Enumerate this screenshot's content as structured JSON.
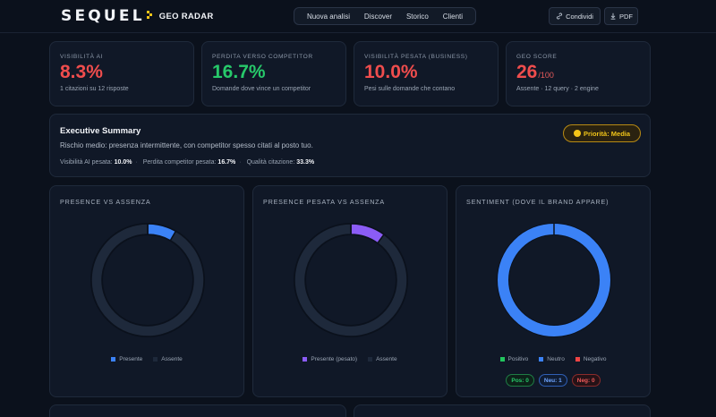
{
  "header": {
    "logo": "SEQUEL",
    "logo_sub": "GEO RADAR",
    "nav": [
      "Nuova analisi",
      "Discover",
      "Storico",
      "Clienti"
    ],
    "share_label": "Condividi",
    "pdf_label": "PDF"
  },
  "kpis": [
    {
      "label": "Visibilità AI",
      "value": "8.3%",
      "sub": "1 citazioni su 12 risposte",
      "color": "#ef4d4d"
    },
    {
      "label": "Perdita verso competitor",
      "value": "16.7%",
      "sub": "Domande dove vince un competitor",
      "color": "#27c96a"
    },
    {
      "label": "Visibilità pesata (business)",
      "value": "10.0%",
      "sub": "Pesi sulle domande che contano",
      "color": "#ef4d4d"
    },
    {
      "label": "GEO Score",
      "value": "26",
      "suffix": "/100",
      "sub": "Assente · 12 query · 2 engine",
      "color": "#ef4d4d"
    }
  ],
  "executive": {
    "title": "Executive Summary",
    "text": "Rischio medio: presenza intermittente, con competitor spesso citati al posto tuo.",
    "m1_label": "Visibilità AI pesata:",
    "m1_value": "10.0%",
    "m2_label": "Perdita competitor pesata:",
    "m2_value": "16.7%",
    "m3_label": "Qualità citazione:",
    "m3_value": "33.3%",
    "priority": "Priorità: Media"
  },
  "donuts": {
    "presence": {
      "title": "Presence vs Assenza",
      "legend": [
        "Presente",
        "Assente"
      ]
    },
    "weighted": {
      "title": "Presence pesata vs Assenza",
      "legend": [
        "Presente (pesato)",
        "Assente"
      ]
    },
    "sentiment": {
      "title": "Sentiment (dove il brand appare)",
      "legend": [
        "Positivo",
        "Neutro",
        "Negativo"
      ],
      "badges": [
        "Pos: 0",
        "Neu: 1",
        "Neg: 0"
      ]
    }
  },
  "chart_data": [
    {
      "type": "pie",
      "title": "Presence vs Assenza",
      "categories": [
        "Presente",
        "Assente"
      ],
      "values": [
        8.3,
        91.7
      ],
      "colors": [
        "#3b82f6",
        "#1e293b"
      ]
    },
    {
      "type": "pie",
      "title": "Presence pesata vs Assenza",
      "categories": [
        "Presente (pesato)",
        "Assente"
      ],
      "values": [
        10.0,
        90.0
      ],
      "colors": [
        "#8b5cf6",
        "#1e293b"
      ]
    },
    {
      "type": "pie",
      "title": "Sentiment (dove il brand appare)",
      "categories": [
        "Positivo",
        "Neutro",
        "Negativo"
      ],
      "values": [
        0,
        1,
        0
      ],
      "colors": [
        "#22c55e",
        "#3b82f6",
        "#ef4444"
      ]
    }
  ]
}
